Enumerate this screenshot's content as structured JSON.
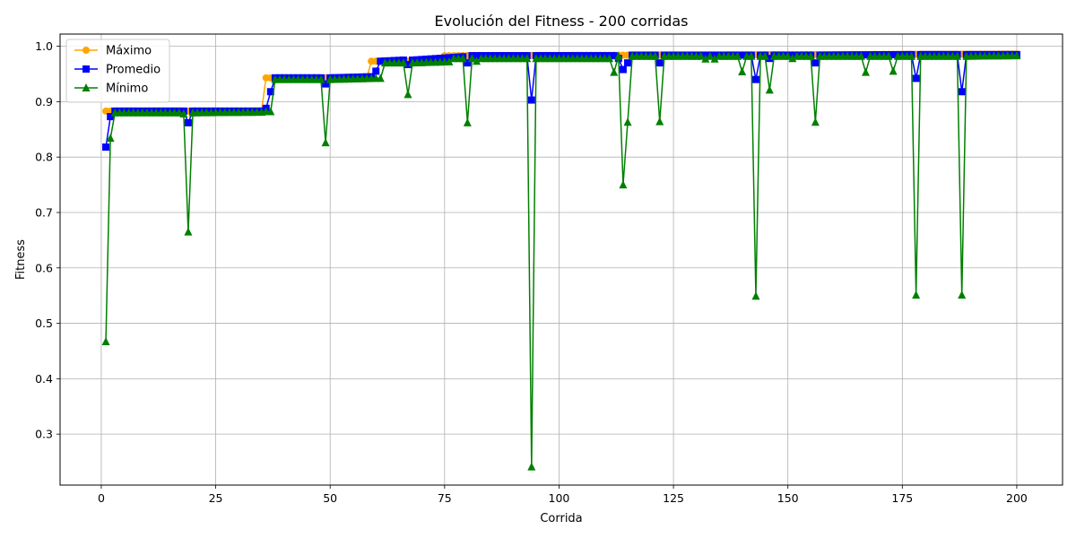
{
  "chart_data": {
    "type": "line",
    "title": "Evolución del Fitness - 200 corridas",
    "xlabel": "Corrida",
    "ylabel": "Fitness",
    "xlim": [
      -9,
      210
    ],
    "ylim": [
      0.208,
      1.022
    ],
    "x_ticks": [
      0,
      25,
      50,
      75,
      100,
      125,
      150,
      175,
      200
    ],
    "y_ticks": [
      0.3,
      0.4,
      0.5,
      0.6,
      0.7,
      0.8,
      0.9,
      1.0
    ],
    "x_tick_labels": [
      "0",
      "25",
      "50",
      "75",
      "100",
      "125",
      "150",
      "175",
      "200"
    ],
    "y_tick_labels": [
      "0.3",
      "0.4",
      "0.5",
      "0.6",
      "0.7",
      "0.8",
      "0.9",
      "1.0"
    ],
    "grid": true,
    "legend_position": "top-left",
    "series": [
      {
        "name": "Máximo",
        "color": "#ffa500",
        "marker": "circle",
        "points": [
          [
            1,
            0.883
          ],
          [
            17,
            0.883
          ],
          [
            18,
            0.883
          ],
          [
            35,
            0.883
          ],
          [
            36,
            0.943
          ],
          [
            58,
            0.943
          ],
          [
            59,
            0.973
          ],
          [
            74,
            0.973
          ],
          [
            75,
            0.983
          ],
          [
            200,
            0.986
          ]
        ]
      },
      {
        "name": "Promedio",
        "color": "#0000ff",
        "marker": "square",
        "points": [
          [
            1,
            0.818
          ],
          [
            2,
            0.873
          ],
          [
            3,
            0.883
          ],
          [
            18,
            0.883
          ],
          [
            19,
            0.862
          ],
          [
            20,
            0.883
          ],
          [
            35,
            0.883
          ],
          [
            36,
            0.888
          ],
          [
            37,
            0.918
          ],
          [
            38,
            0.943
          ],
          [
            48,
            0.943
          ],
          [
            49,
            0.932
          ],
          [
            50,
            0.943
          ],
          [
            59,
            0.945
          ],
          [
            60,
            0.955
          ],
          [
            61,
            0.973
          ],
          [
            66,
            0.975
          ],
          [
            67,
            0.967
          ],
          [
            68,
            0.975
          ],
          [
            79,
            0.981
          ],
          [
            80,
            0.97
          ],
          [
            81,
            0.983
          ],
          [
            93,
            0.983
          ],
          [
            94,
            0.903
          ],
          [
            95,
            0.983
          ],
          [
            112,
            0.983
          ],
          [
            113,
            0.978
          ],
          [
            114,
            0.958
          ],
          [
            115,
            0.97
          ],
          [
            116,
            0.984
          ],
          [
            121,
            0.984
          ],
          [
            122,
            0.97
          ],
          [
            123,
            0.984
          ],
          [
            142,
            0.984
          ],
          [
            143,
            0.94
          ],
          [
            144,
            0.984
          ],
          [
            145,
            0.984
          ],
          [
            146,
            0.978
          ],
          [
            147,
            0.984
          ],
          [
            155,
            0.984
          ],
          [
            156,
            0.97
          ],
          [
            157,
            0.984
          ],
          [
            177,
            0.985
          ],
          [
            178,
            0.942
          ],
          [
            179,
            0.985
          ],
          [
            187,
            0.985
          ],
          [
            188,
            0.918
          ],
          [
            189,
            0.985
          ],
          [
            200,
            0.985
          ]
        ]
      },
      {
        "name": "Mínimo",
        "color": "#008000",
        "marker": "triangle",
        "points": [
          [
            1,
            0.467
          ],
          [
            2,
            0.834
          ],
          [
            3,
            0.88
          ],
          [
            17,
            0.88
          ],
          [
            18,
            0.878
          ],
          [
            19,
            0.665
          ],
          [
            20,
            0.88
          ],
          [
            35,
            0.881
          ],
          [
            36,
            0.882
          ],
          [
            37,
            0.882
          ],
          [
            38,
            0.94
          ],
          [
            48,
            0.94
          ],
          [
            49,
            0.826
          ],
          [
            50,
            0.94
          ],
          [
            60,
            0.942
          ],
          [
            61,
            0.942
          ],
          [
            62,
            0.97
          ],
          [
            66,
            0.97
          ],
          [
            67,
            0.913
          ],
          [
            68,
            0.97
          ],
          [
            76,
            0.972
          ],
          [
            77,
            0.978
          ],
          [
            79,
            0.978
          ],
          [
            80,
            0.862
          ],
          [
            81,
            0.978
          ],
          [
            82,
            0.973
          ],
          [
            83,
            0.978
          ],
          [
            93,
            0.978
          ],
          [
            94,
            0.241
          ],
          [
            95,
            0.978
          ],
          [
            111,
            0.978
          ],
          [
            112,
            0.953
          ],
          [
            113,
            0.982
          ],
          [
            114,
            0.75
          ],
          [
            115,
            0.863
          ],
          [
            116,
            0.982
          ],
          [
            121,
            0.982
          ],
          [
            122,
            0.864
          ],
          [
            123,
            0.982
          ],
          [
            131,
            0.982
          ],
          [
            132,
            0.977
          ],
          [
            133,
            0.982
          ],
          [
            134,
            0.977
          ],
          [
            135,
            0.982
          ],
          [
            139,
            0.982
          ],
          [
            140,
            0.954
          ],
          [
            141,
            0.982
          ],
          [
            142,
            0.982
          ],
          [
            143,
            0.549
          ],
          [
            144,
            0.982
          ],
          [
            145,
            0.982
          ],
          [
            146,
            0.921
          ],
          [
            147,
            0.982
          ],
          [
            150,
            0.982
          ],
          [
            151,
            0.978
          ],
          [
            152,
            0.982
          ],
          [
            155,
            0.982
          ],
          [
            156,
            0.863
          ],
          [
            157,
            0.982
          ],
          [
            166,
            0.982
          ],
          [
            167,
            0.953
          ],
          [
            168,
            0.982
          ],
          [
            172,
            0.982
          ],
          [
            173,
            0.955
          ],
          [
            174,
            0.982
          ],
          [
            177,
            0.982
          ],
          [
            178,
            0.551
          ],
          [
            179,
            0.982
          ],
          [
            187,
            0.982
          ],
          [
            188,
            0.551
          ],
          [
            189,
            0.982
          ],
          [
            200,
            0.983
          ]
        ]
      }
    ]
  }
}
